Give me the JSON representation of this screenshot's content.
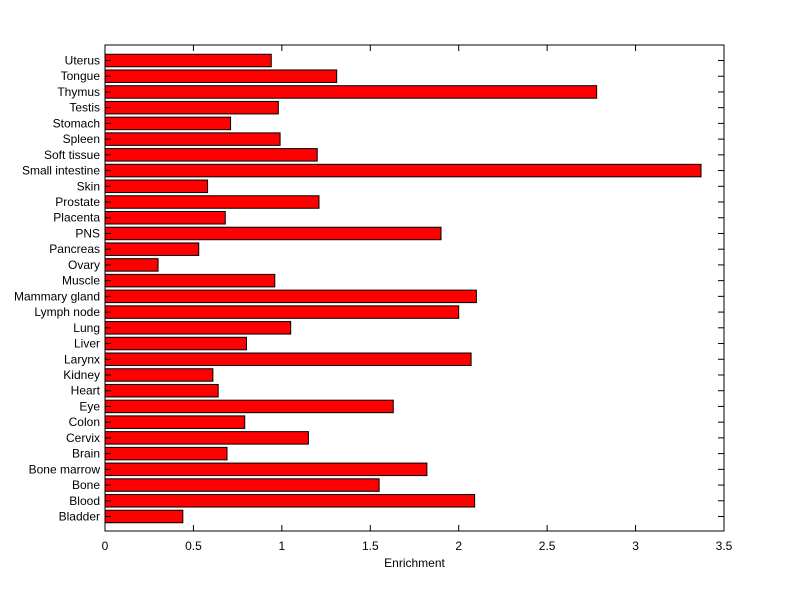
{
  "chart_data": {
    "type": "bar",
    "orientation": "horizontal",
    "title": "",
    "xlabel": "Enrichment",
    "ylabel": "",
    "xlim": [
      0,
      3.5
    ],
    "xticks": [
      "0",
      "0.5",
      "1",
      "1.5",
      "2",
      "2.5",
      "3",
      "3.5"
    ],
    "grid": false,
    "bar_color": "#ff0000",
    "categories": [
      "Bladder",
      "Blood",
      "Bone",
      "Bone marrow",
      "Brain",
      "Cervix",
      "Colon",
      "Eye",
      "Heart",
      "Kidney",
      "Larynx",
      "Liver",
      "Lung",
      "Lymph node",
      "Mammary gland",
      "Muscle",
      "Ovary",
      "Pancreas",
      "PNS",
      "Placenta",
      "Prostate",
      "Skin",
      "Small intestine",
      "Soft tissue",
      "Spleen",
      "Stomach",
      "Testis",
      "Thymus",
      "Tongue",
      "Uterus"
    ],
    "values": [
      0.44,
      2.09,
      1.55,
      1.82,
      0.69,
      1.15,
      0.79,
      1.63,
      0.64,
      0.61,
      2.07,
      0.8,
      1.05,
      2.0,
      2.1,
      0.96,
      0.3,
      0.53,
      1.9,
      0.68,
      1.21,
      0.58,
      3.37,
      1.2,
      0.99,
      0.71,
      0.98,
      2.78,
      1.31,
      0.94
    ]
  }
}
